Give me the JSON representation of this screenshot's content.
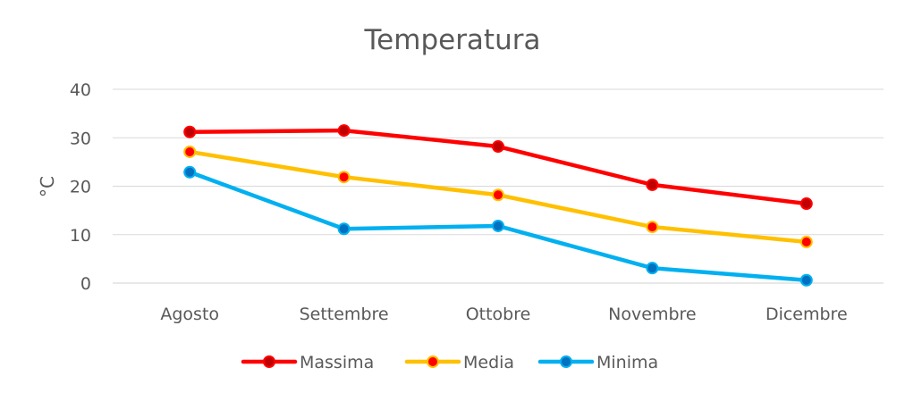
{
  "chart_data": {
    "type": "line",
    "title": "Temperatura",
    "xlabel": "",
    "ylabel": "°C",
    "ylim": [
      0,
      40
    ],
    "yticks": [
      0,
      10,
      20,
      30,
      40
    ],
    "grid": true,
    "legend_position": "bottom",
    "categories": [
      "Agosto",
      "Settembre",
      "Ottobre",
      "Novembre",
      "Dicembre"
    ],
    "series": [
      {
        "name": "Massima",
        "line_color": "#FF0000",
        "marker_color": "#C00000",
        "values": [
          31.2,
          31.5,
          28.2,
          20.3,
          16.4
        ]
      },
      {
        "name": "Media",
        "line_color": "#FFC000",
        "marker_color": "#FF0000",
        "values": [
          27.1,
          21.9,
          18.2,
          11.6,
          8.5
        ]
      },
      {
        "name": "Minima",
        "line_color": "#00B0F0",
        "marker_color": "#0070C0",
        "values": [
          22.9,
          11.2,
          11.8,
          3.1,
          0.6
        ]
      }
    ]
  }
}
